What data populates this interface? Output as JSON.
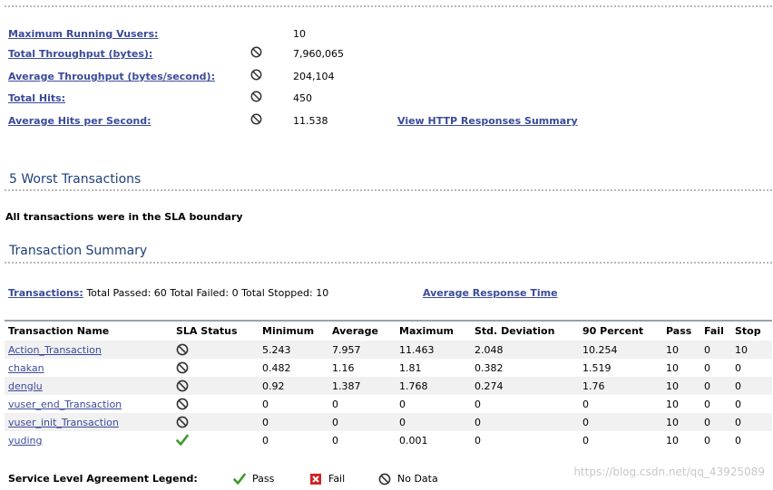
{
  "stats": [
    {
      "label": "Maximum Running Vusers:",
      "value": "10",
      "has_icon": false
    },
    {
      "label": "Total Throughput (bytes):",
      "value": "7,960,065",
      "has_icon": true
    },
    {
      "label": "Average Throughput (bytes/second):",
      "value": "204,104",
      "has_icon": true
    },
    {
      "label": "Total Hits:",
      "value": "450",
      "has_icon": true
    },
    {
      "label": "Average Hits per Second:",
      "value": "11.538",
      "has_icon": true
    }
  ],
  "http_responses_link": "View HTTP Responses Summary",
  "worst": {
    "title": "5 Worst Transactions",
    "message": "All transactions were in the SLA boundary"
  },
  "summary": {
    "title": "Transaction Summary",
    "transactions_link": "Transactions:",
    "counts_text": "Total Passed: 60 Total Failed: 0 Total Stopped: 10",
    "avg_response_link": "Average Response Time"
  },
  "table": {
    "headers": [
      "Transaction Name",
      "SLA Status",
      "Minimum",
      "Average",
      "Maximum",
      "Std. Deviation",
      "90 Percent",
      "Pass",
      "Fail",
      "Stop"
    ],
    "rows": [
      {
        "name": "Action_Transaction",
        "sla": "no-data",
        "min": "5.243",
        "avg": "7.957",
        "max": "11.463",
        "std": "2.048",
        "p90": "10.254",
        "pass": "10",
        "fail": "0",
        "stop": "10"
      },
      {
        "name": "chakan",
        "sla": "no-data",
        "min": "0.482",
        "avg": "1.16",
        "max": "1.81",
        "std": "0.382",
        "p90": "1.519",
        "pass": "10",
        "fail": "0",
        "stop": "0"
      },
      {
        "name": "denglu",
        "sla": "no-data",
        "min": "0.92",
        "avg": "1.387",
        "max": "1.768",
        "std": "0.274",
        "p90": "1.76",
        "pass": "10",
        "fail": "0",
        "stop": "0"
      },
      {
        "name": "vuser_end_Transaction",
        "sla": "no-data",
        "min": "0",
        "avg": "0",
        "max": "0",
        "std": "0",
        "p90": "0",
        "pass": "10",
        "fail": "0",
        "stop": "0"
      },
      {
        "name": "vuser_init_Transaction",
        "sla": "no-data",
        "min": "0",
        "avg": "0",
        "max": "0",
        "std": "0",
        "p90": "0",
        "pass": "10",
        "fail": "0",
        "stop": "0"
      },
      {
        "name": "yuding",
        "sla": "pass",
        "min": "0",
        "avg": "0",
        "max": "0.001",
        "std": "0",
        "p90": "0",
        "pass": "10",
        "fail": "0",
        "stop": "0"
      }
    ]
  },
  "legend": {
    "title": "Service Level Agreement Legend:",
    "pass": "Pass",
    "fail": "Fail",
    "no_data": "No Data"
  },
  "watermark": "https://blog.csdn.net/qq_43925089",
  "colors": {
    "link": "#3b4b9a",
    "section_title": "#1f3f7a",
    "row_alt": "#f1f1f1",
    "pass_green": "#3a9a2a",
    "fail_red": "#d42020"
  }
}
